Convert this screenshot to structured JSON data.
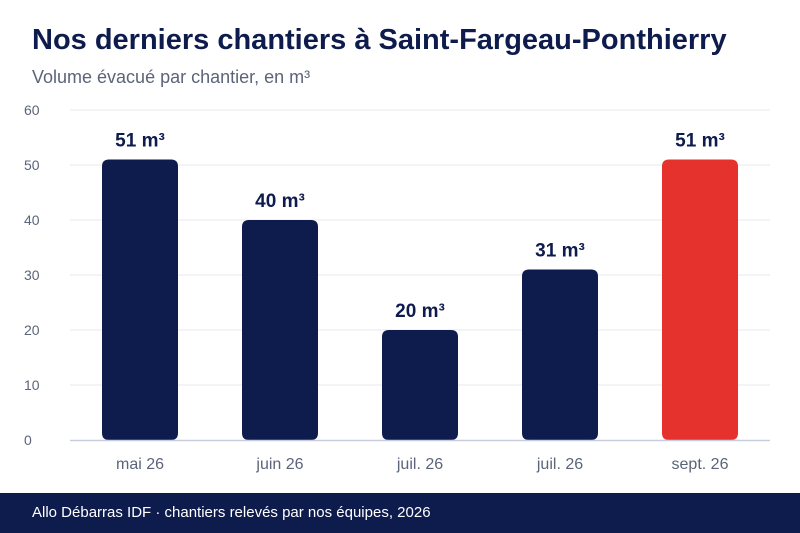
{
  "header": {
    "title": "Nos derniers chantiers à Saint-Fargeau-Ponthierry",
    "subtitle": "Volume évacué par chantier, en m³"
  },
  "chart_data": {
    "type": "bar",
    "categories": [
      "mai 26",
      "juin 26",
      "juil. 26",
      "juil. 26",
      "sept. 26"
    ],
    "values": [
      51,
      40,
      20,
      31,
      51
    ],
    "data_labels": [
      "51 m³",
      "40 m³",
      "20 m³",
      "31 m³",
      "51 m³"
    ],
    "bar_colors": [
      "#0e1b4d",
      "#0e1b4d",
      "#0e1b4d",
      "#0e1b4d",
      "#e5322d"
    ],
    "ylim": [
      0,
      60
    ],
    "yticks": [
      0,
      10,
      20,
      30,
      40,
      50,
      60
    ],
    "grid": true,
    "legend": "none"
  },
  "footer": {
    "text": "Allo Débarras IDF · chantiers relevés par nos équipes, 2026"
  },
  "colors": {
    "primary": "#0e1b4d",
    "accent": "#e5322d",
    "muted_text": "#5b6478",
    "grid": "#e6e8ee"
  }
}
